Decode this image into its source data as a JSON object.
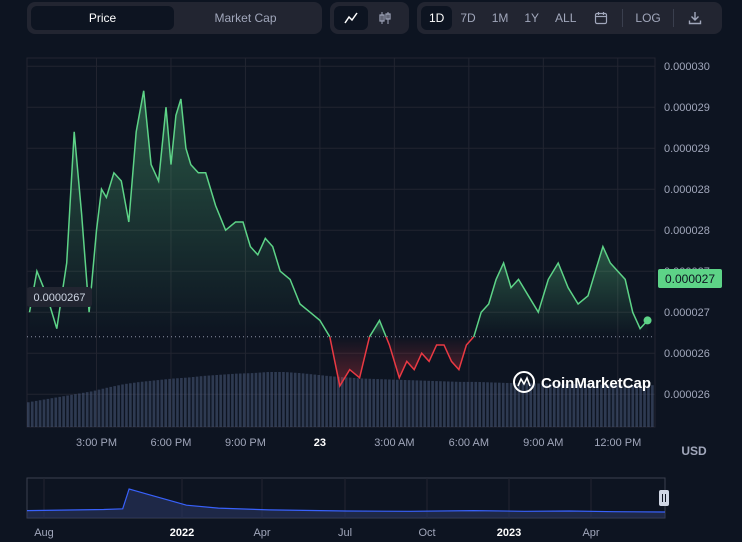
{
  "toolbar": {
    "metric_tabs": [
      {
        "label": "Price",
        "active": true
      },
      {
        "label": "Market Cap",
        "active": false
      }
    ],
    "chart_type_tabs": [
      {
        "icon": "line-chart-icon",
        "active": true
      },
      {
        "icon": "candlestick-icon",
        "active": false
      }
    ],
    "range_tabs": [
      {
        "label": "1D",
        "active": true
      },
      {
        "label": "7D",
        "active": false
      },
      {
        "label": "1M",
        "active": false
      },
      {
        "label": "1Y",
        "active": false
      },
      {
        "label": "ALL",
        "active": false
      }
    ],
    "calendar_icon": "calendar-icon",
    "log_label": "LOG",
    "download_icon": "download-icon"
  },
  "colors": {
    "up": "#5dd387",
    "down": "#ea3943",
    "volume": "#4a5a7a",
    "grid": "#222531",
    "nav_line": "#3861fb",
    "bg": "#0d1421"
  },
  "chart_data": {
    "type": "line",
    "title": "",
    "currency_label": "USD",
    "watermark": "CoinMarketCap",
    "baseline_label": "0.0000267",
    "baseline_value": 2.67e-05,
    "current_price_label": "0.000027",
    "y_tick_labels": [
      "0.000030",
      "0.000029",
      "0.000029",
      "0.000028",
      "0.000028",
      "0.000027",
      "0.000027",
      "0.000026",
      "0.000026"
    ],
    "y_tick_values": [
      3e-05,
      2.95e-05,
      2.9e-05,
      2.85e-05,
      2.8e-05,
      2.75e-05,
      2.7e-05,
      2.65e-05,
      2.6e-05
    ],
    "x_tick_labels": [
      "3:00 PM",
      "6:00 PM",
      "9:00 PM",
      "23",
      "3:00 AM",
      "6:00 AM",
      "9:00 AM",
      "12:00 PM"
    ],
    "x_tick_hours": [
      15,
      18,
      21,
      24,
      27,
      30,
      33,
      36
    ],
    "x_range_hours": [
      12.2,
      37.5
    ],
    "ylim": [
      2.56e-05,
      3.01e-05
    ],
    "series": [
      {
        "x_hours": [
          12.3,
          12.6,
          13.0,
          13.4,
          13.8,
          14.1,
          14.4,
          14.7,
          15.0,
          15.2,
          15.4,
          15.7,
          16.0,
          16.3,
          16.6,
          16.9,
          17.2,
          17.5,
          17.8,
          18.0,
          18.2,
          18.4,
          18.6,
          18.8,
          19.1,
          19.4,
          19.8,
          20.2,
          20.6,
          20.9,
          21.2,
          21.5,
          21.8,
          22.1,
          22.4,
          22.8,
          23.2,
          23.6,
          24.0,
          24.4,
          24.8,
          25.2,
          25.6,
          26.0,
          26.4,
          26.8,
          27.2,
          27.5,
          27.8,
          28.1,
          28.4,
          28.7,
          29.0,
          29.3,
          29.6,
          29.9,
          30.2,
          30.5,
          30.8,
          31.1,
          31.4,
          31.7,
          32.0,
          32.4,
          32.8,
          33.2,
          33.6,
          34.0,
          34.4,
          34.8,
          35.1,
          35.4,
          35.7,
          36.0,
          36.3,
          36.6,
          36.9,
          37.2
        ],
        "values": [
          2.7e-05,
          2.75e-05,
          2.72e-05,
          2.68e-05,
          2.76e-05,
          2.92e-05,
          2.82e-05,
          2.7e-05,
          2.8e-05,
          2.85e-05,
          2.84e-05,
          2.87e-05,
          2.86e-05,
          2.81e-05,
          2.92e-05,
          2.97e-05,
          2.88e-05,
          2.86e-05,
          2.95e-05,
          2.88e-05,
          2.94e-05,
          2.96e-05,
          2.9e-05,
          2.88e-05,
          2.87e-05,
          2.87e-05,
          2.83e-05,
          2.8e-05,
          2.81e-05,
          2.81e-05,
          2.78e-05,
          2.77e-05,
          2.79e-05,
          2.78e-05,
          2.75e-05,
          2.74e-05,
          2.71e-05,
          2.7e-05,
          2.69e-05,
          2.67e-05,
          2.61e-05,
          2.63e-05,
          2.62e-05,
          2.67e-05,
          2.69e-05,
          2.66e-05,
          2.62e-05,
          2.64e-05,
          2.63e-05,
          2.65e-05,
          2.64e-05,
          2.66e-05,
          2.66e-05,
          2.64e-05,
          2.63e-05,
          2.66e-05,
          2.67e-05,
          2.7e-05,
          2.71e-05,
          2.74e-05,
          2.76e-05,
          2.73e-05,
          2.74e-05,
          2.72e-05,
          2.7e-05,
          2.74e-05,
          2.76e-05,
          2.73e-05,
          2.71e-05,
          2.72e-05,
          2.75e-05,
          2.78e-05,
          2.76e-05,
          2.75e-05,
          2.74e-05,
          2.7e-05,
          2.68e-05,
          2.69e-05
        ]
      }
    ],
    "volume_relative": [
      0.45,
      0.5,
      0.55,
      0.6,
      0.65,
      0.72,
      0.78,
      0.82,
      0.85,
      0.88,
      0.9,
      0.93,
      0.95,
      0.97,
      0.98,
      1.0,
      1.0,
      0.98,
      0.95,
      0.92,
      0.9,
      0.88,
      0.87,
      0.86,
      0.85,
      0.84,
      0.83,
      0.82,
      0.82,
      0.81,
      0.8,
      0.8,
      0.79,
      0.79,
      0.78,
      0.78,
      0.77,
      0.77,
      0.76,
      0.76
    ],
    "navigator": {
      "x_tick_labels": [
        "Aug",
        "2022",
        "Apr",
        "Jul",
        "Oct",
        "2023",
        "Apr"
      ],
      "x_tick_bold": [
        false,
        true,
        false,
        false,
        false,
        true,
        false
      ]
    }
  }
}
